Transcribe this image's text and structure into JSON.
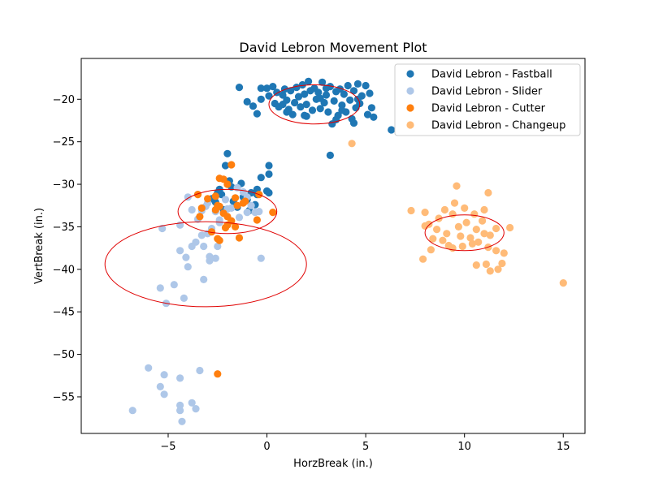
{
  "chart_data": {
    "type": "scatter",
    "title": "David Lebron Movement Plot",
    "xlabel": "HorzBreak (in.)",
    "ylabel": "VertBreak (in.)",
    "xlim": [
      -9.4,
      16.1
    ],
    "ylim": [
      -59.3,
      -15.2
    ],
    "xticks": [
      -5,
      0,
      5,
      10,
      15
    ],
    "yticks": [
      -20,
      -25,
      -30,
      -35,
      -40,
      -45,
      -50,
      -55
    ],
    "grid": false,
    "legend_position": "top-right",
    "ellipse_color": "#e00000",
    "series": [
      {
        "name": "David Lebron - Fastball",
        "color": "#1f77b4",
        "points": [
          [
            -1.4,
            -18.6
          ],
          [
            -1.0,
            -20.3
          ],
          [
            -0.7,
            -20.8
          ],
          [
            -0.5,
            -21.7
          ],
          [
            -0.3,
            -18.7
          ],
          [
            -0.3,
            -20.0
          ],
          [
            0.0,
            -18.7
          ],
          [
            0.1,
            -19.6
          ],
          [
            0.3,
            -18.5
          ],
          [
            0.4,
            -20.5
          ],
          [
            0.5,
            -19.2
          ],
          [
            0.6,
            -20.9
          ],
          [
            0.8,
            -19.5
          ],
          [
            0.9,
            -18.8
          ],
          [
            1.0,
            -20.1
          ],
          [
            1.1,
            -21.2
          ],
          [
            1.2,
            -19.0
          ],
          [
            1.3,
            -21.8
          ],
          [
            1.4,
            -20.4
          ],
          [
            1.5,
            -18.6
          ],
          [
            1.6,
            -19.7
          ],
          [
            1.7,
            -20.9
          ],
          [
            1.8,
            -18.3
          ],
          [
            1.9,
            -19.4
          ],
          [
            2.0,
            -20.6
          ],
          [
            2.1,
            -17.9
          ],
          [
            2.2,
            -19.0
          ],
          [
            2.3,
            -21.3
          ],
          [
            2.4,
            -18.7
          ],
          [
            2.5,
            -20.0
          ],
          [
            2.6,
            -19.2
          ],
          [
            2.7,
            -21.1
          ],
          [
            2.8,
            -18.0
          ],
          [
            2.9,
            -20.4
          ],
          [
            3.0,
            -19.5
          ],
          [
            3.1,
            -21.5
          ],
          [
            3.2,
            -18.5
          ],
          [
            3.3,
            -22.9
          ],
          [
            3.4,
            -20.2
          ],
          [
            3.5,
            -19.1
          ],
          [
            3.6,
            -21.9
          ],
          [
            3.7,
            -18.8
          ],
          [
            3.8,
            -20.7
          ],
          [
            3.9,
            -19.4
          ],
          [
            4.0,
            -21.5
          ],
          [
            4.1,
            -18.4
          ],
          [
            4.2,
            -20.1
          ],
          [
            4.3,
            -22.3
          ],
          [
            4.4,
            -19.0
          ],
          [
            4.5,
            -21.0
          ],
          [
            4.6,
            -18.2
          ],
          [
            4.7,
            -20.5
          ],
          [
            4.8,
            -19.6
          ],
          [
            5.0,
            -18.4
          ],
          [
            5.1,
            -21.8
          ],
          [
            5.2,
            -19.3
          ],
          [
            5.3,
            -21.0
          ],
          [
            5.4,
            -22.1
          ],
          [
            2.0,
            -22.0
          ],
          [
            3.2,
            -26.6
          ],
          [
            6.3,
            -23.6
          ],
          [
            4.6,
            -20.0
          ],
          [
            3.5,
            -22.4
          ],
          [
            1.0,
            -21.5
          ],
          [
            2.7,
            -19.9
          ],
          [
            3.8,
            -21.3
          ],
          [
            4.4,
            -22.8
          ],
          [
            0.8,
            -20.6
          ],
          [
            1.9,
            -21.9
          ],
          [
            3.0,
            -18.7
          ],
          [
            -2.0,
            -26.4
          ],
          [
            -2.1,
            -27.8
          ],
          [
            -0.3,
            -29.2
          ],
          [
            0.1,
            -27.8
          ],
          [
            0.1,
            -28.8
          ],
          [
            0.0,
            -30.8
          ],
          [
            -0.8,
            -31.0
          ],
          [
            -2.4,
            -30.6
          ],
          [
            -1.8,
            -30.3
          ],
          [
            -1.3,
            -29.9
          ],
          [
            -2.3,
            -31.2
          ],
          [
            -1.7,
            -32.0
          ],
          [
            -1.0,
            -31.8
          ],
          [
            -0.5,
            -30.6
          ],
          [
            -2.2,
            -33.0
          ],
          [
            -1.5,
            -32.7
          ],
          [
            -0.9,
            -33.1
          ],
          [
            -0.6,
            -32.4
          ],
          [
            -1.2,
            -31.5
          ],
          [
            -2.6,
            -32.1
          ],
          [
            0.1,
            -31.0
          ],
          [
            -0.5,
            -31.2
          ],
          [
            -2.8,
            -31.7
          ],
          [
            -1.9,
            -29.6
          ],
          [
            -2.5,
            -31.0
          ]
        ]
      },
      {
        "name": "David Lebron - Slider",
        "color": "#aec7e8",
        "points": [
          [
            -4.0,
            -31.5
          ],
          [
            -3.5,
            -31.2
          ],
          [
            -3.5,
            -34.1
          ],
          [
            -3.0,
            -32.2
          ],
          [
            -2.6,
            -33.2
          ],
          [
            -2.1,
            -31.8
          ],
          [
            -1.8,
            -32.8
          ],
          [
            -1.5,
            -30.4
          ],
          [
            -1.2,
            -30.9
          ],
          [
            -1.0,
            -31.5
          ],
          [
            -0.8,
            -32.5
          ],
          [
            -0.6,
            -33.3
          ],
          [
            -2.4,
            -34.2
          ],
          [
            -3.3,
            -33.1
          ],
          [
            -2.8,
            -35.2
          ],
          [
            -3.0,
            -35.8
          ],
          [
            -3.3,
            -36.0
          ],
          [
            -3.6,
            -36.8
          ],
          [
            -3.8,
            -37.3
          ],
          [
            -3.2,
            -37.3
          ],
          [
            -2.9,
            -38.5
          ],
          [
            -2.6,
            -38.7
          ],
          [
            -2.5,
            -37.3
          ],
          [
            -2.9,
            -39.0
          ],
          [
            -3.2,
            -41.2
          ],
          [
            -4.4,
            -34.8
          ],
          [
            -5.3,
            -35.2
          ],
          [
            -4.4,
            -37.8
          ],
          [
            -4.1,
            -38.6
          ],
          [
            -4.0,
            -39.7
          ],
          [
            -4.7,
            -41.8
          ],
          [
            -5.4,
            -42.2
          ],
          [
            -4.2,
            -43.4
          ],
          [
            -5.1,
            -44.0
          ],
          [
            -0.3,
            -38.7
          ],
          [
            -0.4,
            -33.2
          ],
          [
            -1.0,
            -33.3
          ],
          [
            -1.4,
            -33.9
          ],
          [
            -2.0,
            -32.9
          ],
          [
            -2.4,
            -34.5
          ],
          [
            -3.1,
            -32.6
          ],
          [
            -3.8,
            -33.0
          ],
          [
            -6.0,
            -51.6
          ],
          [
            -5.2,
            -52.4
          ],
          [
            -3.4,
            -51.9
          ],
          [
            -4.4,
            -52.8
          ],
          [
            -5.4,
            -53.8
          ],
          [
            -5.2,
            -54.7
          ],
          [
            -3.8,
            -55.7
          ],
          [
            -4.4,
            -56.0
          ],
          [
            -3.6,
            -56.4
          ],
          [
            -4.4,
            -56.6
          ],
          [
            -6.8,
            -56.6
          ],
          [
            -4.3,
            -57.9
          ]
        ]
      },
      {
        "name": "David Lebron - Cutter",
        "color": "#ff7f0e",
        "points": [
          [
            -2.4,
            -29.3
          ],
          [
            -2.2,
            -29.4
          ],
          [
            -1.8,
            -27.7
          ],
          [
            -2.0,
            -30.0
          ],
          [
            -1.6,
            -31.6
          ],
          [
            -1.2,
            -32.2
          ],
          [
            -1.5,
            -32.5
          ],
          [
            -1.1,
            -32.0
          ],
          [
            -0.4,
            -31.2
          ],
          [
            -0.5,
            -34.2
          ],
          [
            0.3,
            -33.3
          ],
          [
            -3.5,
            -31.2
          ],
          [
            -3.0,
            -31.7
          ],
          [
            -2.6,
            -31.4
          ],
          [
            -2.5,
            -32.5
          ],
          [
            -2.2,
            -33.4
          ],
          [
            -2.0,
            -33.8
          ],
          [
            -1.8,
            -34.3
          ],
          [
            -1.6,
            -35.0
          ],
          [
            -2.1,
            -35.1
          ],
          [
            -2.6,
            -33.0
          ],
          [
            -3.3,
            -32.8
          ],
          [
            -3.4,
            -33.8
          ],
          [
            -2.8,
            -35.6
          ],
          [
            -2.5,
            -36.4
          ],
          [
            -1.4,
            -36.3
          ],
          [
            -2.4,
            -36.6
          ],
          [
            -2.0,
            -34.8
          ],
          [
            -2.4,
            -32.6
          ],
          [
            -2.5,
            -52.3
          ]
        ]
      },
      {
        "name": "David Lebron - Changeup",
        "color": "#ffbb78",
        "points": [
          [
            4.3,
            -25.2
          ],
          [
            9.6,
            -30.2
          ],
          [
            11.2,
            -31.0
          ],
          [
            7.3,
            -33.1
          ],
          [
            8.0,
            -33.3
          ],
          [
            9.0,
            -33.0
          ],
          [
            9.5,
            -32.2
          ],
          [
            10.0,
            -32.8
          ],
          [
            10.5,
            -33.5
          ],
          [
            11.0,
            -33.0
          ],
          [
            8.2,
            -34.7
          ],
          [
            8.6,
            -35.3
          ],
          [
            9.1,
            -35.8
          ],
          [
            9.7,
            -35.0
          ],
          [
            10.1,
            -34.5
          ],
          [
            10.6,
            -35.3
          ],
          [
            11.0,
            -35.8
          ],
          [
            11.3,
            -36.0
          ],
          [
            11.6,
            -35.2
          ],
          [
            12.3,
            -35.1
          ],
          [
            8.0,
            -34.9
          ],
          [
            8.4,
            -36.4
          ],
          [
            8.9,
            -36.6
          ],
          [
            9.4,
            -37.5
          ],
          [
            9.9,
            -37.3
          ],
          [
            10.3,
            -36.3
          ],
          [
            10.7,
            -36.8
          ],
          [
            11.2,
            -37.4
          ],
          [
            11.6,
            -37.8
          ],
          [
            8.3,
            -37.7
          ],
          [
            7.9,
            -38.8
          ],
          [
            10.6,
            -39.5
          ],
          [
            11.1,
            -39.4
          ],
          [
            11.3,
            -40.2
          ],
          [
            11.7,
            -40.0
          ],
          [
            11.9,
            -39.3
          ],
          [
            12.0,
            -38.1
          ],
          [
            15.0,
            -41.6
          ],
          [
            9.4,
            -33.5
          ],
          [
            10.9,
            -34.3
          ],
          [
            9.8,
            -36.1
          ],
          [
            10.4,
            -37.0
          ],
          [
            8.7,
            -34.0
          ],
          [
            9.2,
            -37.2
          ]
        ]
      }
    ],
    "ellipses": [
      {
        "cx": 2.4,
        "cy": -20.6,
        "rx": 2.3,
        "ry": 2.3
      },
      {
        "cx": -2.0,
        "cy": -33.2,
        "rx": 2.5,
        "ry": 2.6
      },
      {
        "cx": -3.1,
        "cy": -39.4,
        "rx": 5.1,
        "ry": 5.0
      },
      {
        "cx": 10.0,
        "cy": -35.7,
        "rx": 2.0,
        "ry": 2.1
      }
    ]
  }
}
